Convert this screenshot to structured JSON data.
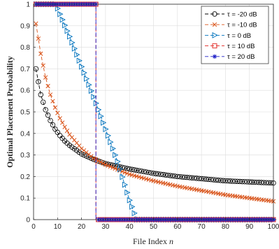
{
  "chart_data": {
    "type": "line",
    "xlabel": "File Index n",
    "ylabel": "Optimal Placement Probability",
    "xlim": [
      0,
      100
    ],
    "ylim": [
      0,
      1
    ],
    "xticks": [
      "0",
      "10",
      "20",
      "30",
      "40",
      "50",
      "60",
      "70",
      "80",
      "90",
      "100"
    ],
    "yticks": [
      "0",
      "0.1",
      "0.2",
      "0.3",
      "0.4",
      "0.5",
      "0.6",
      "0.7",
      "0.8",
      "0.9",
      "1"
    ],
    "grid": true,
    "legend_position": "top-right",
    "series": [
      {
        "name": "τ = -20 dB",
        "color": "#000000",
        "marker": "circle",
        "x": [
          1,
          3,
          5,
          7,
          9,
          11,
          13,
          15,
          20,
          25,
          30,
          40,
          50,
          60,
          70,
          80,
          90,
          100
        ],
        "y": [
          0.7,
          0.58,
          0.51,
          0.46,
          0.42,
          0.39,
          0.365,
          0.345,
          0.305,
          0.28,
          0.26,
          0.235,
          0.215,
          0.2,
          0.19,
          0.18,
          0.175,
          0.17
        ]
      },
      {
        "name": "τ = -10 dB",
        "color": "#d95319",
        "marker": "x",
        "x": [
          1,
          3,
          5,
          7,
          9,
          11,
          13,
          15,
          20,
          25,
          30,
          40,
          50,
          60,
          70,
          80,
          90,
          100
        ],
        "y": [
          0.91,
          0.77,
          0.66,
          0.58,
          0.52,
          0.47,
          0.43,
          0.395,
          0.33,
          0.285,
          0.255,
          0.21,
          0.18,
          0.155,
          0.135,
          0.115,
          0.1,
          0.085
        ]
      },
      {
        "name": "τ = 0 dB",
        "color": "#0072bd",
        "marker": "triangle-right",
        "x": [
          1,
          9,
          10,
          15,
          20,
          25,
          30,
          35,
          40,
          43,
          50,
          60,
          70,
          80,
          90,
          100
        ],
        "y": [
          1,
          1,
          0.98,
          0.85,
          0.71,
          0.57,
          0.42,
          0.27,
          0.09,
          0,
          0,
          0,
          0,
          0,
          0,
          0
        ]
      },
      {
        "name": "τ = 10 dB",
        "color": "#e0201b",
        "marker": "square",
        "x": [
          1,
          26,
          26,
          100
        ],
        "y": [
          1,
          1,
          0,
          0
        ]
      },
      {
        "name": "τ = 20 dB",
        "color": "#2020c8",
        "marker": "star",
        "x": [
          1,
          26,
          26,
          100
        ],
        "y": [
          1,
          1,
          0,
          0
        ]
      }
    ]
  }
}
